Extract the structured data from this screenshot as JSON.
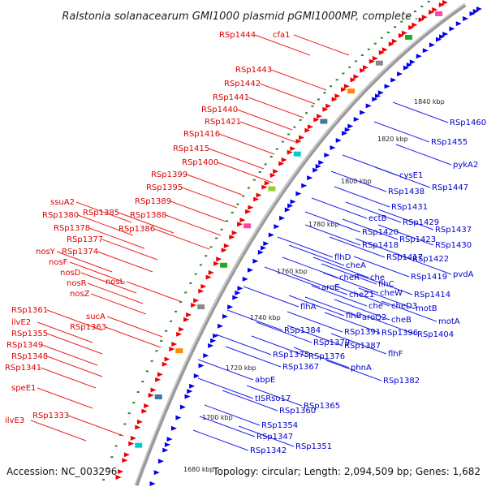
{
  "title": "Ralstonia solanacearum GMI1000 plasmid pGMI1000MP, complete ...",
  "footer": {
    "accession": "Accession: NC_003296",
    "stats": "Topology: circular; Length: 2,094,509 bp; Genes: 1,682"
  },
  "colors": {
    "forward": "#ee0000",
    "reverse": "#0000ee",
    "backbone": "#888888",
    "gc": "#228822"
  },
  "icons": {
    "forward_gene": "red-arrow-icon",
    "reverse_gene": "blue-arrow-icon",
    "rna": "colored-block-icon"
  },
  "ticks": [
    "1840 kbp",
    "1820 kbp",
    "1800 kbp",
    "1780 kbp",
    "1760 kbp",
    "1740 kbp",
    "1720 kbp",
    "1700 kbp",
    "1680 kbp"
  ],
  "labels_red": [
    "RSp1444",
    "cfa1",
    "RSp1443",
    "RSp1442",
    "RSp1441",
    "RSp1440",
    "RSp1421",
    "RSp1416",
    "RSp1415",
    "RSp1400",
    "RSp1399",
    "RSp1395",
    "RSp1389",
    "ssuA2",
    "RSp1385",
    "RSp1380",
    "RSp1388",
    "RSp1378",
    "RSp1386",
    "RSp1377",
    "RSp1374",
    "nosY",
    "nosF",
    "nosD",
    "nosR",
    "nosL",
    "nosZ",
    "RSp1361",
    "sucA",
    "ilvE2",
    "RSp1363",
    "RSp1355",
    "RSp1349",
    "RSp1348",
    "RSp1341",
    "speE1",
    "RSp1333",
    "ilvE3"
  ],
  "labels_blue": [
    "RSp1460",
    "RSp1455",
    "pykA2",
    "cysE1",
    "RSp1447",
    "RSp1438",
    "RSp1431",
    "ectB",
    "RSp1437",
    "RSp1429",
    "RSp1420",
    "RSp1423",
    "RSp1418",
    "RSp1430",
    "flhD",
    "RSp1417",
    "RSp1422",
    "cheA",
    "pvdA",
    "cheR",
    "che",
    "flhC",
    "RSp1419",
    "aroE",
    "cheZ1",
    "cheW",
    "RSp1414",
    "flhA",
    "che",
    "cheD3",
    "motB",
    "flhB",
    "aroQ2",
    "cheB",
    "motA",
    "RSp1384",
    "RSp1391",
    "RSp1396",
    "RSp1404",
    "RSp1379",
    "RSp1387",
    "RSp1375",
    "RSp1376",
    "flhF",
    "RSp1367",
    "phnA",
    "abpE",
    "RSp1382",
    "tISRso17",
    "RSp1365",
    "RSp1360",
    "RSp1354",
    "RSp1347",
    "RSp1351",
    "RSp1342"
  ]
}
